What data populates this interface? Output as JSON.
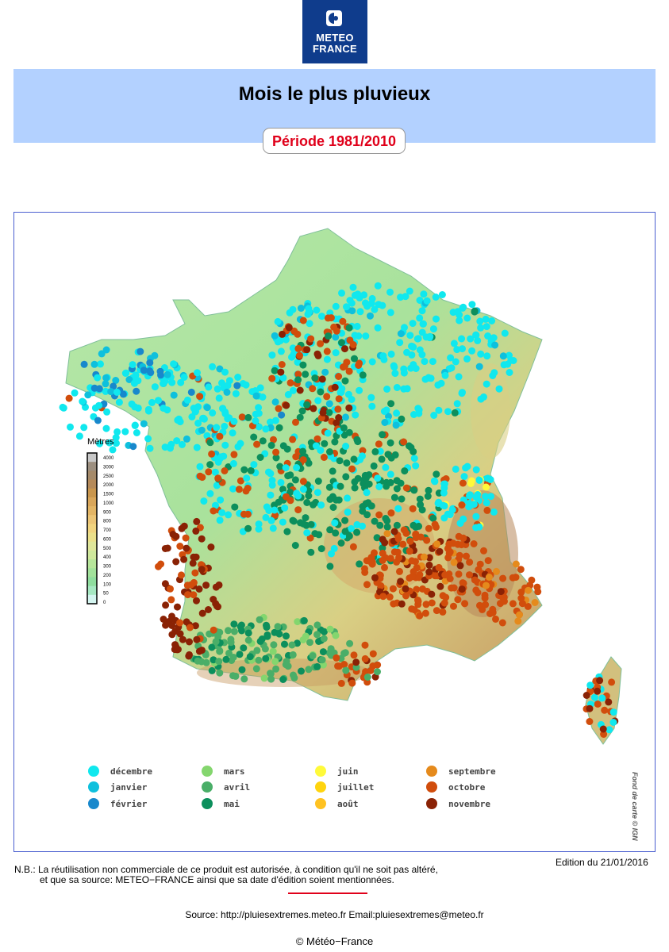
{
  "logo": {
    "line1": "METEO",
    "line2": "FRANCE"
  },
  "title": "Mois le plus pluvieux",
  "period": "Période 1981/2010",
  "elevation_scale": {
    "title": "Mètres",
    "ticks": [
      "4000",
      "3000",
      "2500",
      "2000",
      "1500",
      "1000",
      "900",
      "800",
      "700",
      "600",
      "500",
      "400",
      "300",
      "200",
      "100",
      "50",
      "0"
    ],
    "colors": [
      "#c8c8c8",
      "#9c8f80",
      "#a58a6a",
      "#b58a5a",
      "#c9964e",
      "#d9a65a",
      "#e3b565",
      "#ecc576",
      "#f1d47f",
      "#ebe08a",
      "#dfe69a",
      "#cfe89c",
      "#b7e69b",
      "#a2e29b",
      "#8fdd9e",
      "#a6e8c2",
      "#d4f5f0"
    ]
  },
  "legend": [
    {
      "label": "décembre",
      "color": "#10e8ee"
    },
    {
      "label": "janvier",
      "color": "#0ec0dd"
    },
    {
      "label": "février",
      "color": "#1888cc"
    },
    {
      "label": "mars",
      "color": "#84d66e"
    },
    {
      "label": "avril",
      "color": "#4aae68"
    },
    {
      "label": "mai",
      "color": "#0c8f5c"
    },
    {
      "label": "juin",
      "color": "#fffa3a"
    },
    {
      "label": "juillet",
      "color": "#ffd40e"
    },
    {
      "label": "août",
      "color": "#ffc221"
    },
    {
      "label": "septembre",
      "color": "#e58a1c"
    },
    {
      "label": "octobre",
      "color": "#d14d0c"
    },
    {
      "label": "novembre",
      "color": "#8a2205"
    }
  ],
  "credit": "Fond de carte © IGN",
  "edition": "Edition du 21/01/2016",
  "note": {
    "line1": "N.B.: La réutilisation non commerciale de ce produit est autorisée, à condition qu'il ne soit pas altéré,",
    "line2": "et que sa source: METEO−FRANCE ainsi que sa date d'édition soient mentionnées."
  },
  "source": "Source: http://pluiesextremes.meteo.fr Email:pluiesextremes@meteo.fr",
  "copyright": "© Météo−France"
}
